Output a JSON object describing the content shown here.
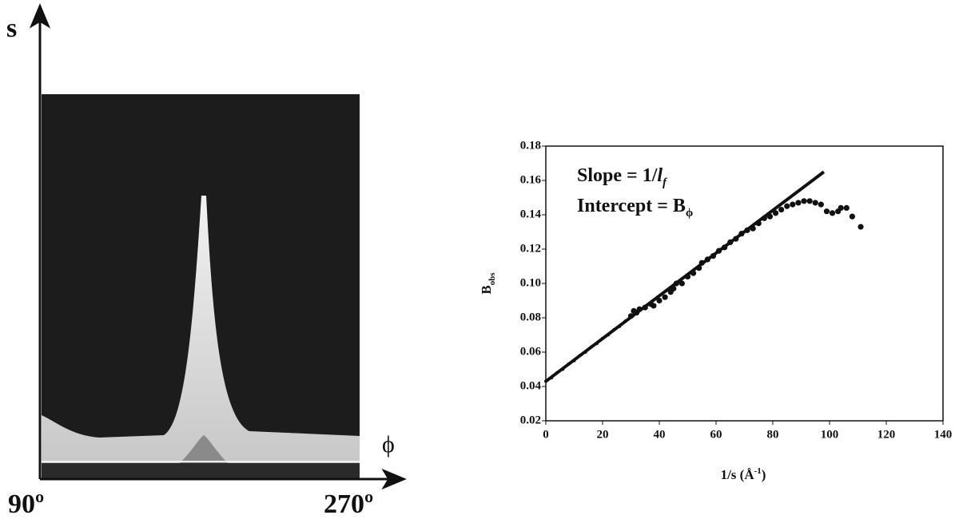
{
  "image_panel": {
    "y_label": "s",
    "x_label": "ϕ",
    "x_start": "90º",
    "x_end": "270º"
  },
  "chart_data": {
    "type": "scatter",
    "xlabel": [
      "1/s (Å",
      "-1",
      ")"
    ],
    "ylabel": [
      "B",
      "obs"
    ],
    "annotations": [
      [
        "Slope = 1/",
        "l",
        "f"
      ],
      [
        "Intercept = B",
        "ϕ"
      ]
    ],
    "xlim": [
      0,
      140
    ],
    "xticks": [
      0,
      20,
      40,
      60,
      80,
      100,
      120,
      140
    ],
    "ylim": [
      0.02,
      0.18
    ],
    "yticks": [
      0.02,
      0.04,
      0.06,
      0.08,
      {
        "value": 0.1,
        "label": "0.10"
      },
      0.12,
      0.14,
      0.16,
      0.18
    ],
    "series": [
      {
        "color": "#111111",
        "marker": "small",
        "x": [
          0,
          2,
          4,
          6,
          8,
          10,
          12,
          14,
          16,
          18,
          20,
          22,
          24,
          26,
          28
        ],
        "values": [
          0.043,
          0.045,
          0.048,
          0.05,
          0.053,
          0.055,
          0.058,
          0.06,
          0.063,
          0.065,
          0.068,
          0.07,
          0.073,
          0.075,
          0.078
        ]
      },
      {
        "color": "#111111",
        "marker": "large",
        "x": [
          30,
          31,
          32,
          33,
          35,
          37,
          38,
          40,
          42,
          44,
          45,
          46,
          48,
          50,
          52,
          54,
          55,
          57,
          59,
          61,
          63,
          65,
          67,
          69,
          71,
          73,
          75,
          77,
          79,
          81,
          83,
          85,
          87,
          89,
          91,
          93,
          95,
          97,
          99,
          101,
          103,
          104,
          106,
          108,
          111
        ],
        "values": [
          0.081,
          0.084,
          0.083,
          0.085,
          0.086,
          0.088,
          0.087,
          0.09,
          0.092,
          0.095,
          0.097,
          0.1,
          0.1,
          0.104,
          0.106,
          0.109,
          0.112,
          0.114,
          0.116,
          0.119,
          0.121,
          0.124,
          0.126,
          0.129,
          0.131,
          0.132,
          0.135,
          0.138,
          0.139,
          0.141,
          0.143,
          0.145,
          0.146,
          0.147,
          0.148,
          0.148,
          0.147,
          0.146,
          0.142,
          0.141,
          0.142,
          0.144,
          0.144,
          0.139,
          0.133
        ]
      }
    ],
    "fit_line": {
      "color": "#111111",
      "x": [
        0,
        98
      ],
      "values": [
        0.043,
        0.165
      ]
    }
  }
}
